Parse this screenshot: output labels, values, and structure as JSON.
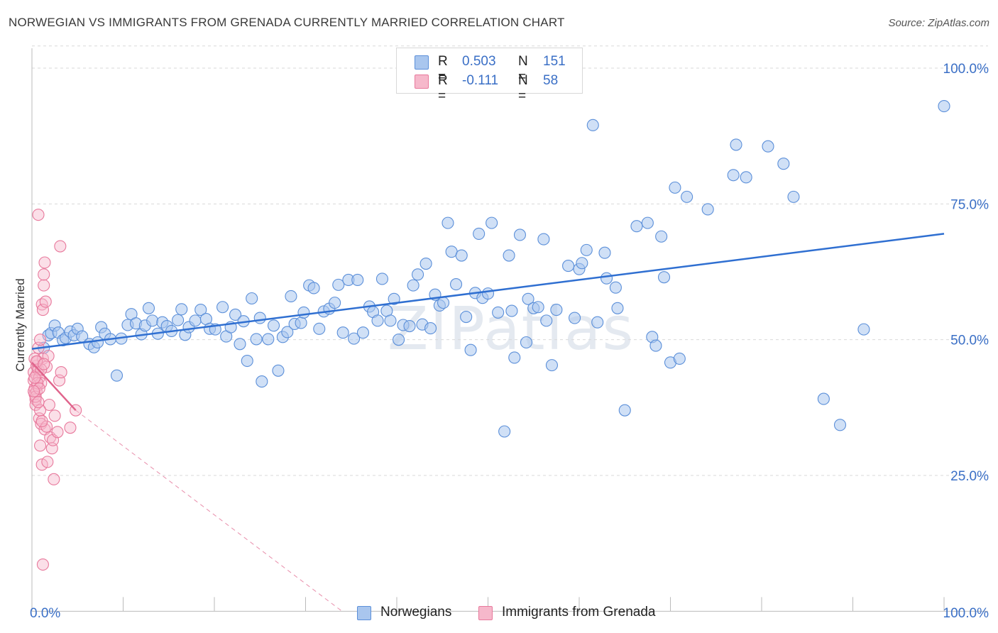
{
  "title": "NORWEGIAN VS IMMIGRANTS FROM GRENADA CURRENTLY MARRIED CORRELATION CHART",
  "source": "Source: ZipAtlas.com",
  "watermark": "ZIPatlas",
  "colors": {
    "blue": "#5b8fd9",
    "blue_fill": "#a9c6ee",
    "blue_line": "#2f6fd1",
    "pink": "#e8799c",
    "pink_fill": "#f6b8cb",
    "pink_line": "#e0648c",
    "tick_label": "#3a6fc6",
    "grid": "#d9d9d9"
  },
  "legend": {
    "rows": [
      {
        "r_label": "R =",
        "r_value": "0.503",
        "n_label": "N =",
        "n_value": "151",
        "color": "#a9c6ee",
        "border": "#5b8fd9"
      },
      {
        "r_label": "R =",
        "r_value": "-0.111",
        "n_label": "N =",
        "n_value": "58",
        "color": "#f6b8cb",
        "border": "#e8799c"
      }
    ]
  },
  "bottom_legend": [
    {
      "label": "Norwegians",
      "color": "#a9c6ee",
      "border": "#5b8fd9"
    },
    {
      "label": "Immigrants from Grenada",
      "color": "#f6b8cb",
      "border": "#e8799c"
    }
  ],
  "chart_data": {
    "type": "scatter",
    "title": "NORWEGIAN VS IMMIGRANTS FROM GRENADA CURRENTLY MARRIED CORRELATION CHART",
    "xlabel": "",
    "ylabel": "Currently Married",
    "xlim": [
      0,
      100
    ],
    "ylim": [
      0,
      105
    ],
    "x_tick_labels": [
      "0.0%",
      "100.0%"
    ],
    "y_ticks": [
      25,
      50,
      75,
      100
    ],
    "y_tick_labels": [
      "25.0%",
      "50.0%",
      "75.0%",
      "100.0%"
    ],
    "grid": true,
    "series": [
      {
        "name": "Norwegians",
        "r": 0.503,
        "n": 151,
        "trend": {
          "x": [
            0,
            100
          ],
          "y": [
            48.3,
            69.5
          ]
        },
        "points": [
          [
            1.3,
            48.5
          ],
          [
            1.8,
            50.8
          ],
          [
            2.1,
            51.2
          ],
          [
            2.5,
            52.6
          ],
          [
            2.9,
            51.3
          ],
          [
            3.4,
            49.9
          ],
          [
            3.7,
            50.3
          ],
          [
            4.2,
            51.5
          ],
          [
            4.6,
            50.8
          ],
          [
            5.0,
            52.0
          ],
          [
            5.5,
            50.6
          ],
          [
            6.3,
            49.2
          ],
          [
            6.8,
            48.6
          ],
          [
            7.2,
            49.5
          ],
          [
            7.6,
            52.3
          ],
          [
            8.0,
            51.1
          ],
          [
            8.6,
            50.1
          ],
          [
            9.3,
            43.4
          ],
          [
            9.8,
            50.2
          ],
          [
            10.5,
            52.7
          ],
          [
            10.9,
            54.7
          ],
          [
            11.4,
            53.0
          ],
          [
            12.0,
            51.0
          ],
          [
            12.4,
            52.6
          ],
          [
            12.8,
            55.8
          ],
          [
            13.2,
            53.5
          ],
          [
            13.8,
            51.1
          ],
          [
            14.3,
            53.2
          ],
          [
            14.8,
            52.5
          ],
          [
            15.3,
            51.6
          ],
          [
            16.0,
            53.6
          ],
          [
            16.4,
            55.6
          ],
          [
            16.8,
            50.9
          ],
          [
            17.2,
            52.3
          ],
          [
            17.9,
            53.5
          ],
          [
            18.5,
            55.5
          ],
          [
            19.1,
            53.8
          ],
          [
            19.5,
            52.0
          ],
          [
            20.1,
            51.9
          ],
          [
            20.9,
            56.0
          ],
          [
            21.3,
            50.6
          ],
          [
            21.8,
            52.3
          ],
          [
            22.3,
            54.6
          ],
          [
            22.8,
            49.2
          ],
          [
            23.2,
            53.4
          ],
          [
            23.6,
            46.1
          ],
          [
            24.1,
            57.6
          ],
          [
            24.6,
            50.1
          ],
          [
            25.0,
            54.0
          ],
          [
            25.2,
            42.3
          ],
          [
            25.9,
            50.1
          ],
          [
            26.5,
            52.6
          ],
          [
            27.0,
            44.3
          ],
          [
            27.5,
            50.5
          ],
          [
            28.0,
            51.4
          ],
          [
            28.4,
            58.0
          ],
          [
            28.8,
            52.9
          ],
          [
            29.5,
            53.1
          ],
          [
            29.8,
            55.0
          ],
          [
            30.4,
            60.0
          ],
          [
            30.9,
            59.5
          ],
          [
            31.5,
            52.0
          ],
          [
            32.0,
            55.2
          ],
          [
            32.6,
            55.7
          ],
          [
            33.2,
            56.8
          ],
          [
            33.6,
            60.1
          ],
          [
            34.1,
            51.3
          ],
          [
            34.7,
            61.0
          ],
          [
            35.3,
            50.2
          ],
          [
            35.7,
            61.0
          ],
          [
            36.3,
            51.3
          ],
          [
            37.0,
            56.1
          ],
          [
            37.4,
            55.1
          ],
          [
            37.9,
            53.5
          ],
          [
            38.4,
            61.2
          ],
          [
            38.9,
            55.3
          ],
          [
            39.3,
            53.5
          ],
          [
            39.7,
            57.5
          ],
          [
            40.2,
            50.0
          ],
          [
            40.7,
            52.7
          ],
          [
            41.4,
            52.5
          ],
          [
            41.8,
            60.0
          ],
          [
            42.3,
            62.0
          ],
          [
            42.8,
            52.8
          ],
          [
            43.2,
            64.0
          ],
          [
            43.7,
            52.1
          ],
          [
            44.2,
            58.3
          ],
          [
            44.7,
            56.3
          ],
          [
            45.1,
            56.8
          ],
          [
            45.6,
            71.5
          ],
          [
            46.0,
            66.2
          ],
          [
            46.5,
            60.2
          ],
          [
            47.1,
            65.5
          ],
          [
            47.6,
            54.2
          ],
          [
            48.1,
            48.1
          ],
          [
            48.6,
            58.6
          ],
          [
            49.0,
            69.5
          ],
          [
            49.4,
            57.7
          ],
          [
            50.0,
            58.5
          ],
          [
            50.4,
            71.5
          ],
          [
            51.1,
            55.0
          ],
          [
            51.8,
            33.1
          ],
          [
            52.3,
            65.5
          ],
          [
            52.6,
            55.3
          ],
          [
            52.9,
            46.7
          ],
          [
            53.5,
            69.3
          ],
          [
            54.2,
            49.5
          ],
          [
            54.4,
            57.5
          ],
          [
            55.0,
            55.8
          ],
          [
            55.5,
            56.0
          ],
          [
            56.1,
            68.5
          ],
          [
            56.4,
            53.5
          ],
          [
            57.0,
            45.3
          ],
          [
            57.5,
            55.5
          ],
          [
            58.8,
            63.6
          ],
          [
            59.5,
            54.0
          ],
          [
            60.0,
            63.0
          ],
          [
            60.3,
            64.1
          ],
          [
            60.8,
            66.5
          ],
          [
            61.5,
            89.5
          ],
          [
            62.0,
            53.2
          ],
          [
            62.8,
            66.0
          ],
          [
            63.0,
            61.3
          ],
          [
            64.0,
            59.6
          ],
          [
            64.2,
            55.8
          ],
          [
            65.0,
            37.0
          ],
          [
            66.3,
            70.9
          ],
          [
            67.5,
            71.5
          ],
          [
            68.0,
            50.5
          ],
          [
            68.4,
            48.9
          ],
          [
            69.0,
            69.0
          ],
          [
            69.3,
            61.5
          ],
          [
            70.0,
            45.8
          ],
          [
            70.5,
            78.0
          ],
          [
            71.0,
            46.5
          ],
          [
            71.8,
            76.3
          ],
          [
            74.1,
            74.0
          ],
          [
            76.9,
            80.3
          ],
          [
            77.2,
            85.9
          ],
          [
            78.3,
            79.9
          ],
          [
            80.7,
            85.6
          ],
          [
            82.4,
            82.4
          ],
          [
            83.5,
            76.3
          ],
          [
            86.8,
            39.1
          ],
          [
            88.6,
            34.3
          ],
          [
            91.2,
            51.9
          ],
          [
            100.0,
            93.0
          ]
        ]
      },
      {
        "name": "Immigrants from Grenada",
        "r": -0.111,
        "n": 58,
        "trend": {
          "x": [
            0,
            4.8
          ],
          "y": [
            45.8,
            37.0
          ]
        },
        "trend_extended": {
          "x": [
            4.8,
            34
          ],
          "y": [
            37.0,
            0
          ]
        },
        "points": [
          [
            0.2,
            44.0
          ],
          [
            0.2,
            42.5
          ],
          [
            0.3,
            41.0
          ],
          [
            0.3,
            40.0
          ],
          [
            0.4,
            39.0
          ],
          [
            0.4,
            38.0
          ],
          [
            0.5,
            43.5
          ],
          [
            0.5,
            45.2
          ],
          [
            0.6,
            46.0
          ],
          [
            0.6,
            41.5
          ],
          [
            0.7,
            48.5
          ],
          [
            0.7,
            44.5
          ],
          [
            0.8,
            43.0
          ],
          [
            0.8,
            35.5
          ],
          [
            0.9,
            50.0
          ],
          [
            0.9,
            30.5
          ],
          [
            1.0,
            34.5
          ],
          [
            1.0,
            42.0
          ],
          [
            1.1,
            56.5
          ],
          [
            1.1,
            27.0
          ],
          [
            1.2,
            55.5
          ],
          [
            1.2,
            46.5
          ],
          [
            1.3,
            60.0
          ],
          [
            1.3,
            62.0
          ],
          [
            1.4,
            64.2
          ],
          [
            1.4,
            33.5
          ],
          [
            1.5,
            57.0
          ],
          [
            1.6,
            45.0
          ],
          [
            1.6,
            34.0
          ],
          [
            1.7,
            27.5
          ],
          [
            1.8,
            47.0
          ],
          [
            1.9,
            38.0
          ],
          [
            2.0,
            32.0
          ],
          [
            2.2,
            30.0
          ],
          [
            2.3,
            31.5
          ],
          [
            2.4,
            24.3
          ],
          [
            2.5,
            36.0
          ],
          [
            2.8,
            33.0
          ],
          [
            3.0,
            42.5
          ],
          [
            3.1,
            67.2
          ],
          [
            3.2,
            44.0
          ],
          [
            4.2,
            33.8
          ],
          [
            4.8,
            37.0
          ],
          [
            0.7,
            73.0
          ],
          [
            1.2,
            8.6
          ],
          [
            0.3,
            46.5
          ],
          [
            0.5,
            40.5
          ],
          [
            0.9,
            37.0
          ],
          [
            0.4,
            39.5
          ],
          [
            0.6,
            42.0
          ],
          [
            1.0,
            44.5
          ],
          [
            0.3,
            43.0
          ],
          [
            0.8,
            41.0
          ],
          [
            1.1,
            35.0
          ],
          [
            0.5,
            46.0
          ],
          [
            1.3,
            45.5
          ],
          [
            0.2,
            40.5
          ],
          [
            0.7,
            38.5
          ]
        ]
      }
    ]
  }
}
